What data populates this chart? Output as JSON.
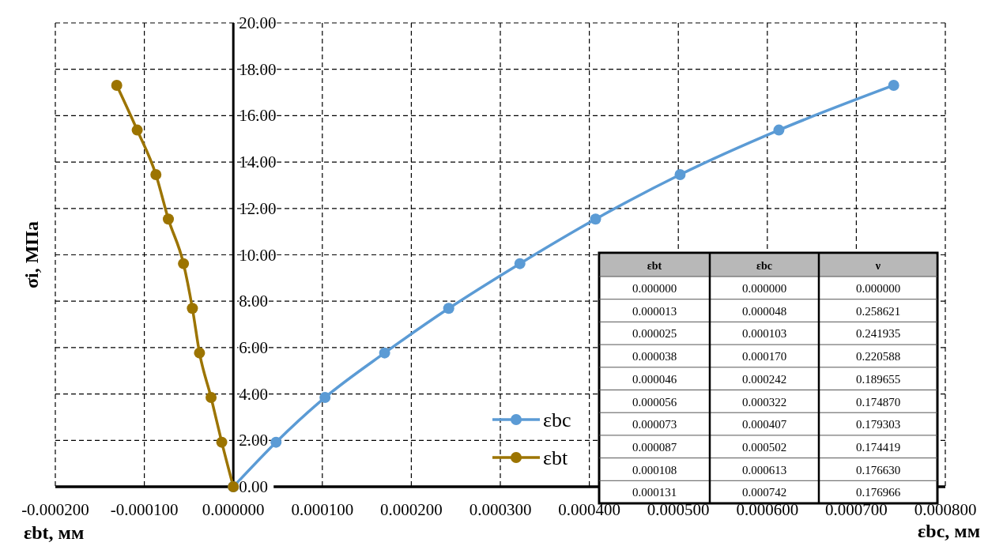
{
  "chart_data": [
    {
      "type": "line",
      "ylabel": "σi, МПа",
      "xlabel": "εbc, мм",
      "annotations": [
        "εbt, мм"
      ],
      "xlim": [
        -0.0002,
        0.0008
      ],
      "xticks": [
        {
          "value": -0.0002,
          "label": "-0.000200"
        },
        {
          "value": -0.0001,
          "label": "-0.000100"
        },
        {
          "value": 0,
          "label": "0.000000"
        },
        {
          "value": 0.0001,
          "label": "0.000100"
        },
        {
          "value": 0.0002,
          "label": "0.000200"
        },
        {
          "value": 0.0003,
          "label": "0.000300"
        },
        {
          "value": 0.0004,
          "label": "0.000400"
        },
        {
          "value": 0.0005,
          "label": "0.000500"
        },
        {
          "value": 0.0006,
          "label": "0.000600"
        },
        {
          "value": 0.0007,
          "label": "0.000700"
        },
        {
          "value": 0.0008,
          "label": "0.000800"
        }
      ],
      "ylim": [
        0,
        20
      ],
      "yticks": [
        {
          "value": 0,
          "label": "0.00"
        },
        {
          "value": 2,
          "label": "2.00"
        },
        {
          "value": 4,
          "label": "4.00"
        },
        {
          "value": 6,
          "label": "6.00"
        },
        {
          "value": 8,
          "label": "8.00"
        },
        {
          "value": 10,
          "label": "10.00"
        },
        {
          "value": 12,
          "label": "12.00"
        },
        {
          "value": 14,
          "label": "14.00"
        },
        {
          "value": 16,
          "label": "16.00"
        },
        {
          "value": 18,
          "label": "18.00"
        },
        {
          "value": 20,
          "label": "20.00"
        }
      ],
      "grid": true,
      "legend": "bottom right",
      "marker": "circle",
      "line_style": "solid",
      "series": [
        {
          "name": "εbc",
          "color": "#5b9bd5",
          "x": [
            0,
            4.8e-05,
            0.000103,
            0.00017,
            0.000242,
            0.000322,
            0.000407,
            0.000502,
            0.000613,
            0.000742
          ],
          "values": [
            0,
            1.92,
            3.85,
            5.77,
            7.69,
            9.62,
            11.54,
            13.46,
            15.38,
            17.31
          ]
        },
        {
          "name": "εbt",
          "color": "#9c7400",
          "x": [
            0,
            -1.3e-05,
            -2.5e-05,
            -3.8e-05,
            -4.6e-05,
            -5.6e-05,
            -7.3e-05,
            -8.7e-05,
            -0.000108,
            -0.000131
          ],
          "values": [
            0,
            1.92,
            3.85,
            5.77,
            7.69,
            9.62,
            11.54,
            13.46,
            15.38,
            17.31
          ]
        }
      ]
    },
    {
      "type": "other",
      "categories": [
        "εbt",
        "εbc",
        "ν"
      ],
      "cells": [
        [
          "0.000000",
          "0.000000",
          "0.000000"
        ],
        [
          "0.000013",
          "0.000048",
          "0.258621"
        ],
        [
          "0.000025",
          "0.000103",
          "0.241935"
        ],
        [
          "0.000038",
          "0.000170",
          "0.220588"
        ],
        [
          "0.000046",
          "0.000242",
          "0.189655"
        ],
        [
          "0.000056",
          "0.000322",
          "0.174870"
        ],
        [
          "0.000073",
          "0.000407",
          "0.179303"
        ],
        [
          "0.000087",
          "0.000502",
          "0.174419"
        ],
        [
          "0.000108",
          "0.000613",
          "0.176630"
        ],
        [
          "0.000131",
          "0.000742",
          "0.176966"
        ]
      ]
    }
  ]
}
